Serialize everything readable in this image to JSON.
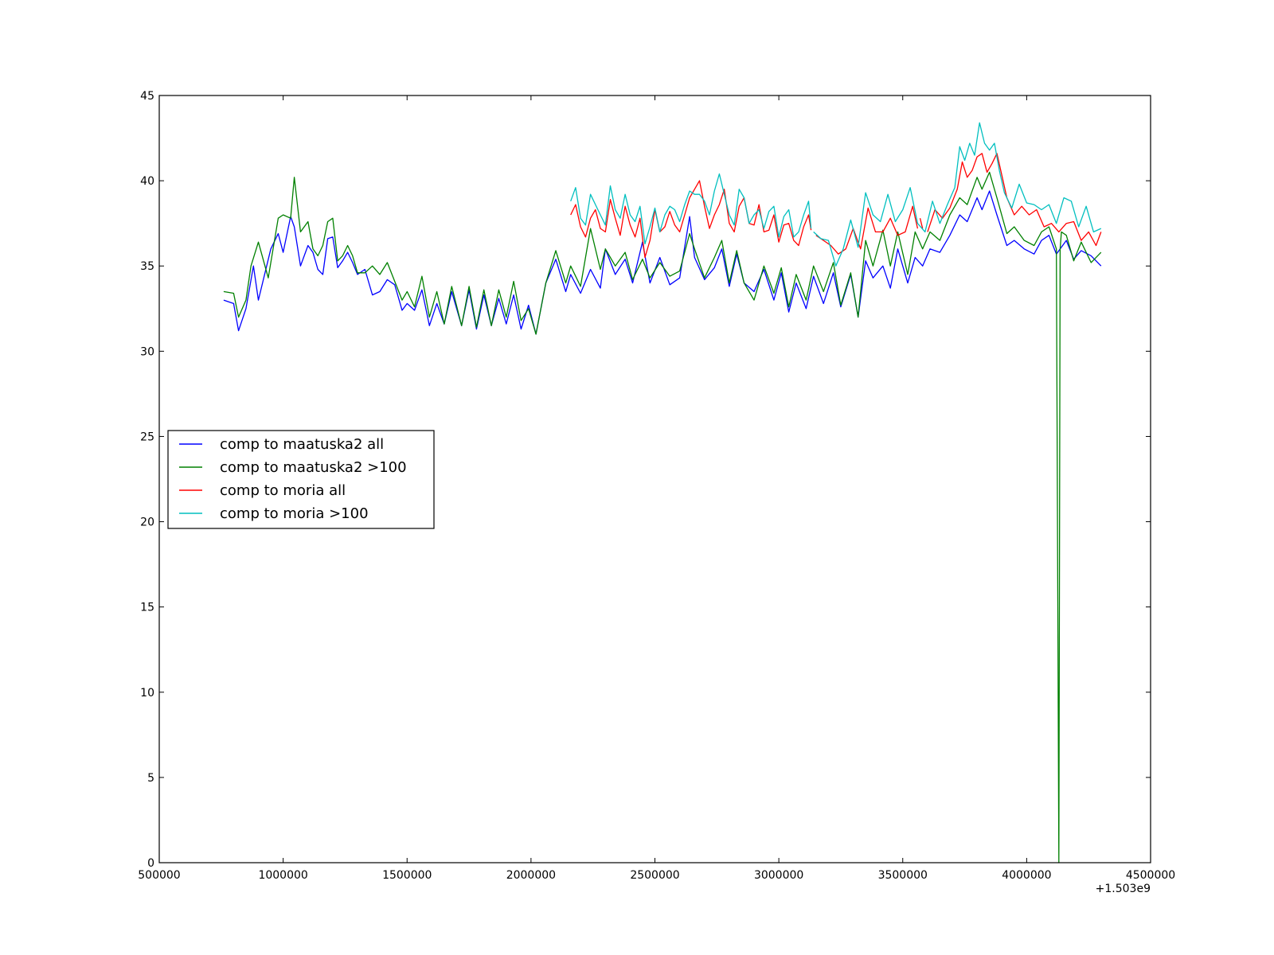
{
  "chart_data": {
    "type": "line",
    "title": "",
    "xlabel": "",
    "ylabel": "",
    "x_offset_label": "+1.503e9",
    "xlim": [
      500000,
      4500000
    ],
    "ylim": [
      0,
      45
    ],
    "x_ticks": [
      500000,
      1000000,
      1500000,
      2000000,
      2500000,
      3000000,
      3500000,
      4000000,
      4500000
    ],
    "x_tick_labels": [
      "500000",
      "1000000",
      "1500000",
      "2000000",
      "2500000",
      "3000000",
      "3500000",
      "4000000",
      "4500000"
    ],
    "y_ticks": [
      0,
      5,
      10,
      15,
      20,
      25,
      30,
      35,
      40,
      45
    ],
    "y_tick_labels": [
      "0",
      "5",
      "10",
      "15",
      "20",
      "25",
      "30",
      "35",
      "40",
      "45"
    ],
    "grid": false,
    "legend_position": "center-left",
    "series": [
      {
        "name": "comp to maatuska2 all",
        "color": "#0000ff",
        "x": [
          760000,
          800000,
          820000,
          850000,
          880000,
          900000,
          950000,
          980000,
          1000000,
          1030000,
          1045000,
          1070000,
          1100000,
          1120000,
          1140000,
          1160000,
          1180000,
          1200000,
          1220000,
          1240000,
          1260000,
          1280000,
          1300000,
          1330000,
          1360000,
          1390000,
          1420000,
          1450000,
          1480000,
          1500000,
          1530000,
          1560000,
          1590000,
          1620000,
          1650000,
          1680000,
          1720000,
          1750000,
          1780000,
          1810000,
          1840000,
          1870000,
          1900000,
          1930000,
          1960000,
          1990000,
          2020000,
          2060000,
          2100000,
          2140000,
          2160000,
          2200000,
          2240000,
          2280000,
          2300000,
          2340000,
          2380000,
          2410000,
          2450000,
          2480000,
          2520000,
          2560000,
          2600000,
          2640000,
          2660000,
          2700000,
          2740000,
          2770000,
          2800000,
          2830000,
          2860000,
          2900000,
          2940000,
          2980000,
          3010000,
          3040000,
          3070000,
          3110000,
          3140000,
          3180000,
          3220000,
          3250000,
          3290000,
          3320000,
          3350000,
          3380000,
          3420000,
          3450000,
          3480000,
          3520000,
          3550000,
          3580000,
          3610000,
          3650000,
          3690000,
          3730000,
          3760000,
          3800000,
          3820000,
          3850000,
          3880000,
          3920000,
          3950000,
          3990000,
          4030000,
          4060000,
          4090000,
          4120000,
          4160000,
          4190000,
          4220000,
          4260000,
          4300000
        ],
        "y": [
          33.0,
          32.8,
          31.2,
          32.5,
          35.0,
          33.0,
          36.0,
          36.9,
          35.8,
          37.9,
          37.3,
          35.0,
          36.2,
          35.8,
          34.8,
          34.5,
          36.6,
          36.7,
          34.9,
          35.3,
          35.8,
          35.2,
          34.5,
          34.8,
          33.3,
          33.5,
          34.2,
          33.9,
          32.4,
          32.8,
          32.4,
          33.6,
          31.5,
          32.8,
          31.6,
          33.5,
          31.5,
          33.6,
          31.3,
          33.3,
          31.5,
          33.1,
          31.6,
          33.3,
          31.3,
          32.7,
          31.0,
          34.0,
          35.4,
          33.5,
          34.5,
          33.4,
          34.8,
          33.7,
          36.0,
          34.5,
          35.4,
          34.0,
          36.4,
          34.0,
          35.5,
          33.9,
          34.3,
          37.9,
          35.5,
          34.2,
          34.9,
          36.0,
          33.8,
          35.7,
          34.0,
          33.5,
          34.8,
          33.0,
          34.6,
          32.3,
          34.0,
          32.5,
          34.4,
          32.8,
          34.6,
          32.6,
          34.5,
          32.0,
          35.3,
          34.3,
          35.0,
          33.7,
          36.0,
          34.0,
          35.5,
          35.0,
          36.0,
          35.8,
          36.8,
          38.0,
          37.6,
          39.0,
          38.3,
          39.4,
          38.0,
          36.2,
          36.5,
          36.0,
          35.7,
          36.5,
          36.8,
          35.7,
          36.5,
          35.4,
          35.9,
          35.6,
          35.0
        ]
      },
      {
        "name": "comp to maatuska2 >100",
        "color": "#008000",
        "x": [
          760000,
          800000,
          820000,
          850000,
          870000,
          900000,
          940000,
          980000,
          1000000,
          1030000,
          1045000,
          1070000,
          1100000,
          1120000,
          1140000,
          1160000,
          1180000,
          1200000,
          1220000,
          1240000,
          1260000,
          1280000,
          1300000,
          1330000,
          1360000,
          1390000,
          1420000,
          1450000,
          1480000,
          1500000,
          1530000,
          1560000,
          1590000,
          1620000,
          1650000,
          1680000,
          1720000,
          1750000,
          1780000,
          1810000,
          1840000,
          1870000,
          1900000,
          1930000,
          1960000,
          1990000,
          2020000,
          2060000,
          2100000,
          2140000,
          2160000,
          2200000,
          2240000,
          2280000,
          2300000,
          2340000,
          2380000,
          2410000,
          2450000,
          2480000,
          2520000,
          2560000,
          2600000,
          2640000,
          2660000,
          2700000,
          2740000,
          2770000,
          2800000,
          2830000,
          2860000,
          2900000,
          2940000,
          2980000,
          3010000,
          3040000,
          3070000,
          3110000,
          3140000,
          3180000,
          3220000,
          3250000,
          3290000,
          3320000,
          3350000,
          3380000,
          3420000,
          3450000,
          3480000,
          3520000,
          3550000,
          3580000,
          3610000,
          3650000,
          3690000,
          3730000,
          3760000,
          3800000,
          3820000,
          3850000,
          3880000,
          3920000,
          3950000,
          3990000,
          4030000,
          4060000,
          4090000,
          4120000,
          4130000,
          4135000,
          4140000,
          4160000,
          4190000,
          4220000,
          4260000,
          4300000
        ],
        "y": [
          33.5,
          33.4,
          32.0,
          33.0,
          35.0,
          36.4,
          34.3,
          37.8,
          38.0,
          37.8,
          40.2,
          37.0,
          37.6,
          36.0,
          35.6,
          36.2,
          37.6,
          37.8,
          35.3,
          35.6,
          36.2,
          35.6,
          34.6,
          34.6,
          35.0,
          34.5,
          35.2,
          34.1,
          33.0,
          33.5,
          32.6,
          34.4,
          32.0,
          33.5,
          31.6,
          33.8,
          31.5,
          33.8,
          31.4,
          33.6,
          31.5,
          33.6,
          32.0,
          34.1,
          31.8,
          32.5,
          31.0,
          34.0,
          35.9,
          34.0,
          35.0,
          33.8,
          37.2,
          34.8,
          36.0,
          35.0,
          35.8,
          34.2,
          35.4,
          34.3,
          35.2,
          34.4,
          34.7,
          36.9,
          36.0,
          34.3,
          35.5,
          36.5,
          34.0,
          35.9,
          34.0,
          33.0,
          35.0,
          33.4,
          34.9,
          32.6,
          34.5,
          33.0,
          35.0,
          33.5,
          35.2,
          32.7,
          34.6,
          32.0,
          36.5,
          35.0,
          37.1,
          35.0,
          37.0,
          34.5,
          37.0,
          36.0,
          37.0,
          36.5,
          38.0,
          39.0,
          38.6,
          40.2,
          39.5,
          40.5,
          39.0,
          36.9,
          37.3,
          36.5,
          36.2,
          37.0,
          37.3,
          36.0,
          0.0,
          36.0,
          37.0,
          36.8,
          35.3,
          36.4,
          35.2,
          35.8
        ]
      },
      {
        "name": "comp to moria all",
        "color": "#ff0000",
        "segments": [
          {
            "x": [
              2160000,
              2180000,
              2200000,
              2220000,
              2240000,
              2260000,
              2280000,
              2300000,
              2320000,
              2340000,
              2360000,
              2380000,
              2400000,
              2420000,
              2440000,
              2460000,
              2480000,
              2500000,
              2520000,
              2540000,
              2560000,
              2580000,
              2600000,
              2620000,
              2640000,
              2660000,
              2680000,
              2700000,
              2720000,
              2740000,
              2760000,
              2780000,
              2800000,
              2820000,
              2840000,
              2860000,
              2880000,
              2900000,
              2920000,
              2940000,
              2960000,
              2980000,
              3000000,
              3020000,
              3040000,
              3060000,
              3080000,
              3100000,
              3120000,
              3130000
            ],
            "y": [
              38.0,
              38.6,
              37.3,
              36.7,
              37.8,
              38.3,
              37.2,
              37.0,
              38.9,
              37.8,
              36.8,
              38.5,
              37.4,
              36.7,
              37.8,
              35.5,
              36.5,
              38.3,
              37.0,
              37.3,
              38.2,
              37.4,
              37.0,
              38.0,
              39.0,
              39.5,
              40.0,
              38.5,
              37.2,
              38.0,
              38.6,
              39.5,
              37.5,
              37.0,
              38.5,
              39.0,
              37.5,
              37.4,
              38.6,
              37.0,
              37.1,
              38.0,
              36.4,
              37.4,
              37.5,
              36.5,
              36.2,
              37.3,
              38.0,
              37.1
            ]
          },
          {
            "x": [
              3150000,
              3180000,
              3210000,
              3240000,
              3270000,
              3300000,
              3330000,
              3360000,
              3390000,
              3420000,
              3450000,
              3480000,
              3510000,
              3540000,
              3560000
            ],
            "y": [
              36.8,
              36.5,
              36.2,
              35.7,
              36.0,
              37.2,
              36.0,
              38.4,
              37.0,
              37.0,
              37.8,
              36.8,
              37.0,
              38.5,
              37.2
            ]
          },
          {
            "x": [
              3570000,
              3580000
            ],
            "y": [
              37.8,
              37.2
            ]
          },
          {
            "x": [
              3600000,
              3630000,
              3660000,
              3690000,
              3720000,
              3740000,
              3760000,
              3780000,
              3800000,
              3820000,
              3840000,
              3860000,
              3880000,
              3900000,
              3920000,
              3950000,
              3980000,
              4010000,
              4040000,
              4070000,
              4100000,
              4130000,
              4160000,
              4190000,
              4220000,
              4250000,
              4280000,
              4300000
            ],
            "y": [
              37.0,
              38.3,
              37.8,
              38.4,
              39.5,
              41.1,
              40.2,
              40.6,
              41.4,
              41.6,
              40.5,
              41.0,
              41.6,
              40.3,
              39.0,
              38.0,
              38.5,
              38.0,
              38.3,
              37.3,
              37.5,
              37.0,
              37.5,
              37.6,
              36.5,
              37.0,
              36.2,
              37.0
            ]
          }
        ]
      },
      {
        "name": "comp to moria >100",
        "color": "#00bfbf",
        "segments": [
          {
            "x": [
              2160000,
              2180000,
              2200000,
              2220000,
              2240000,
              2260000,
              2280000,
              2300000,
              2320000,
              2340000,
              2360000,
              2380000,
              2400000,
              2420000,
              2440000,
              2460000,
              2480000,
              2500000,
              2520000,
              2540000,
              2560000,
              2580000,
              2600000,
              2620000,
              2640000,
              2660000,
              2680000,
              2700000,
              2720000,
              2740000,
              2760000,
              2780000,
              2800000,
              2820000,
              2840000,
              2860000,
              2880000,
              2900000,
              2920000,
              2940000,
              2960000,
              2980000,
              3000000,
              3020000,
              3040000,
              3060000,
              3080000,
              3100000,
              3120000,
              3130000
            ],
            "y": [
              38.8,
              39.6,
              37.8,
              37.4,
              39.2,
              38.6,
              38.0,
              37.4,
              39.7,
              38.3,
              37.8,
              39.2,
              38.0,
              37.6,
              38.5,
              36.3,
              37.3,
              38.4,
              37.0,
              38.0,
              38.5,
              38.3,
              37.6,
              38.6,
              39.4,
              39.2,
              39.2,
              38.8,
              38.0,
              39.4,
              40.4,
              39.2,
              38.0,
              37.4,
              39.5,
              39.0,
              37.5,
              38.0,
              38.3,
              37.2,
              38.2,
              38.5,
              36.7,
              37.9,
              38.3,
              36.7,
              37.0,
              38.0,
              38.8,
              37.2
            ]
          },
          {
            "x": [
              3140000,
              3170000,
              3200000,
              3230000,
              3260000,
              3290000,
              3320000,
              3350000,
              3380000,
              3410000,
              3440000,
              3470000,
              3500000,
              3530000,
              3560000,
              3590000,
              3620000,
              3650000,
              3680000,
              3710000,
              3730000,
              3750000,
              3770000,
              3790000,
              3810000,
              3830000,
              3850000,
              3870000,
              3890000,
              3910000,
              3940000,
              3970000,
              4000000,
              4030000,
              4060000,
              4090000,
              4120000,
              4150000,
              4180000,
              4210000,
              4240000,
              4270000,
              4300000
            ],
            "y": [
              37.0,
              36.6,
              36.5,
              35.0,
              36.0,
              37.7,
              36.1,
              39.3,
              38.0,
              37.6,
              39.2,
              37.6,
              38.3,
              39.6,
              37.5,
              37.0,
              38.8,
              37.5,
              38.6,
              39.6,
              42.0,
              41.2,
              42.2,
              41.5,
              43.4,
              42.2,
              41.8,
              42.2,
              40.6,
              39.3,
              38.4,
              39.8,
              38.7,
              38.6,
              38.3,
              38.6,
              37.5,
              39.0,
              38.8,
              37.3,
              38.5,
              37.0,
              37.2
            ]
          }
        ]
      }
    ]
  }
}
